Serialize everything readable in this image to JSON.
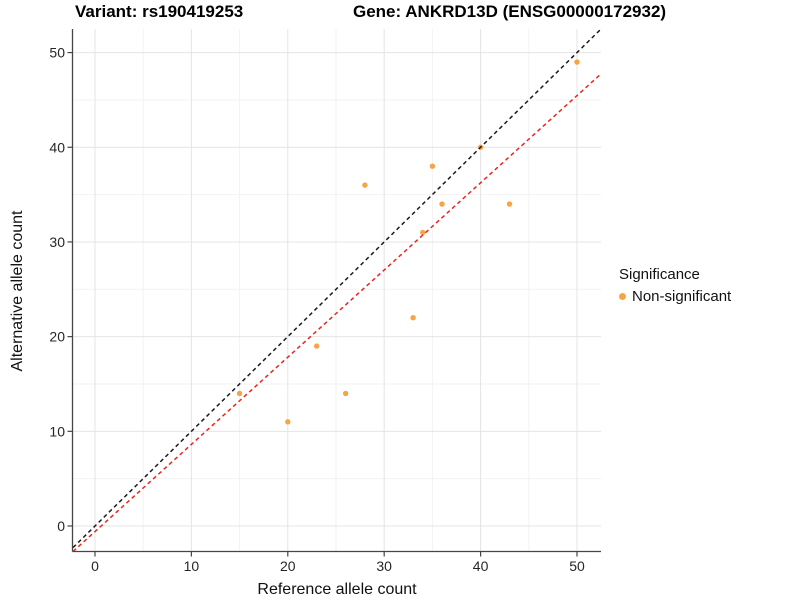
{
  "header": {
    "variant_title": "Variant: rs190419253",
    "gene_title": "Gene: ANKRD13D (ENSG00000172932)"
  },
  "chart_data": {
    "type": "scatter",
    "title_left": "Variant: rs190419253",
    "title_right": "Gene: ANKRD13D (ENSG00000172932)",
    "xlabel": "Reference allele count",
    "ylabel": "Alternative allele count",
    "xlim": [
      -2.28,
      52.49
    ],
    "ylim": [
      -2.64,
      52.49
    ],
    "x_ticks": [
      0,
      10,
      20,
      30,
      40,
      50
    ],
    "y_ticks": [
      0,
      10,
      20,
      30,
      40,
      50
    ],
    "x_minor_ticks": [
      5,
      15,
      25,
      35,
      45
    ],
    "y_minor_ticks": [
      5,
      15,
      25,
      35,
      45
    ],
    "grid": true,
    "series": [
      {
        "name": "Non-significant",
        "color": "#F7A442",
        "points": [
          {
            "x": 15,
            "y": 14
          },
          {
            "x": 20,
            "y": 11
          },
          {
            "x": 23,
            "y": 19
          },
          {
            "x": 26,
            "y": 14
          },
          {
            "x": 28,
            "y": 36
          },
          {
            "x": 33,
            "y": 22
          },
          {
            "x": 34,
            "y": 31
          },
          {
            "x": 35,
            "y": 38
          },
          {
            "x": 36,
            "y": 34
          },
          {
            "x": 40,
            "y": 40
          },
          {
            "x": 43,
            "y": 34
          },
          {
            "x": 50,
            "y": 49
          }
        ]
      }
    ],
    "lines": [
      {
        "name": "identity-line",
        "color": "#1A1A1A",
        "dashed": true,
        "x1": -2.28,
        "y1": -2.28,
        "x2": 52.49,
        "y2": 52.49
      },
      {
        "name": "fit-line",
        "color": "#E8251F",
        "dashed": true,
        "x1": -2.28,
        "y1": -2.69,
        "x2": 52.49,
        "y2": 47.75
      }
    ],
    "legend": {
      "title": "Significance",
      "position": "right",
      "items": [
        {
          "label": "Non-significant",
          "color": "#F7A442"
        }
      ]
    },
    "style": {
      "point_radius": 2.7,
      "major_grid_color": "#E4E4E4",
      "minor_grid_color": "#F2F2F2",
      "axis_line_color": "#454545",
      "tick_color": "#454545",
      "tick_label_color": "#262626"
    }
  }
}
